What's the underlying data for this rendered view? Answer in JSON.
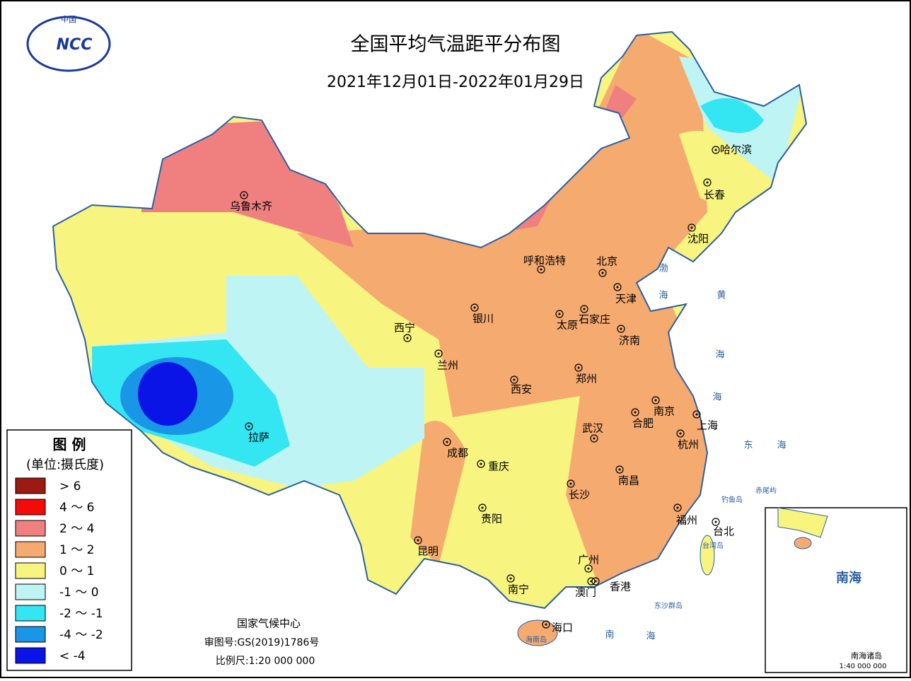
{
  "logo": {
    "top": "中国",
    "text": "NCC"
  },
  "header": {
    "title": "全国平均气温距平分布图",
    "subtitle": "2021年12月01日-2022年01月29日"
  },
  "legend": {
    "title": "图 例",
    "unit": "(单位:摄氏度)",
    "items": [
      {
        "label": "> 6",
        "color": "#9b1a12"
      },
      {
        "label": "4 ～ 6",
        "color": "#f50a0a"
      },
      {
        "label": "2 ～ 4",
        "color": "#f08080"
      },
      {
        "label": "1 ～ 2",
        "color": "#f5aa70"
      },
      {
        "label": "0 ～ 1",
        "color": "#f8f480"
      },
      {
        "label": "-1 ～ 0",
        "color": "#bff4f4"
      },
      {
        "label": "-2 ～ -1",
        "color": "#33e6f2"
      },
      {
        "label": "-4 ～ -2",
        "color": "#1a96e6"
      },
      {
        "label": "< -4",
        "color": "#0a14e6"
      }
    ]
  },
  "cities": [
    "乌鲁木齐",
    "哈尔滨",
    "长春",
    "沈阳",
    "呼和浩特",
    "北京",
    "天津",
    "石家庄",
    "太原",
    "银川",
    "济南",
    "西宁",
    "兰州",
    "西安",
    "郑州",
    "南京",
    "合肥",
    "上海",
    "武汉",
    "杭州",
    "拉萨",
    "成都",
    "重庆",
    "长沙",
    "南昌",
    "贵阳",
    "福州",
    "台北",
    "昆明",
    "广州",
    "南宁",
    "香港",
    "澳门",
    "海口"
  ],
  "seas": [
    "渤",
    "海",
    "黄",
    "海",
    "东",
    "海",
    "南",
    "海",
    "海",
    "台湾岛",
    "海南岛",
    "钓鱼岛",
    "赤尾屿",
    "东沙群岛"
  ],
  "footer": {
    "org": "国家气候中心",
    "approval": "审图号:GS(2019)1786号",
    "scale": "比例尺:1:20 000 000"
  },
  "inset": {
    "title": "南海",
    "islands": "南海诸岛",
    "scale": "1:40 000 000"
  }
}
